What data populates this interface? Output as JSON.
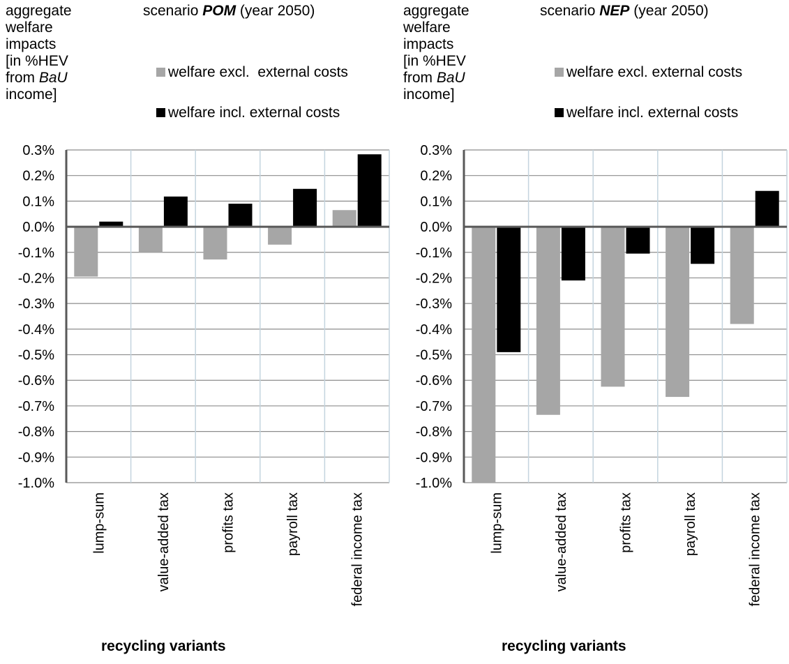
{
  "chart_data": [
    {
      "type": "bar",
      "title_prefix": "scenario",
      "title_scenario": "POM",
      "title_suffix": "(year 2050)",
      "ylabel_lines": [
        "aggregate",
        "welfare",
        "impacts",
        "[in %HEV",
        "from ",
        "income]"
      ],
      "ylabel_bau": "BaU",
      "xlabel": "recycling variants",
      "categories": [
        "lump-sum",
        "value-added tax",
        "profits tax",
        "payroll tax",
        "federal income tax"
      ],
      "ylim": [
        -1.0,
        0.3
      ],
      "yticks": [
        "0.3%",
        "0.2%",
        "0.1%",
        "0.0%",
        "-0.1%",
        "-0.2%",
        "-0.3%",
        "-0.4%",
        "-0.5%",
        "-0.6%",
        "-0.7%",
        "-0.8%",
        "-0.9%",
        "-1.0%"
      ],
      "grid": true,
      "legend_position": "top",
      "series": [
        {
          "name": "welfare excl.  external costs",
          "color": "#a6a6a6",
          "values": [
            -0.195,
            -0.1,
            -0.128,
            -0.07,
            0.065
          ]
        },
        {
          "name": "welfare incl. external costs",
          "color": "#000000",
          "values": [
            0.02,
            0.118,
            0.09,
            0.148,
            0.283
          ]
        }
      ]
    },
    {
      "type": "bar",
      "title_prefix": "scenario",
      "title_scenario": "NEP",
      "title_suffix": "(year 2050)",
      "ylabel_lines": [
        "aggregate",
        "welfare",
        "impacts",
        "[in %HEV",
        "from ",
        "income]"
      ],
      "ylabel_bau": "BaU",
      "xlabel": "recycling variants",
      "categories": [
        "lump-sum",
        "value-added tax",
        "profits tax",
        "payroll tax",
        "federal income tax"
      ],
      "ylim": [
        -1.0,
        0.3
      ],
      "yticks": [
        "0.3%",
        "0.2%",
        "0.1%",
        "0.0%",
        "-0.1%",
        "-0.2%",
        "-0.3%",
        "-0.4%",
        "-0.5%",
        "-0.6%",
        "-0.7%",
        "-0.8%",
        "-0.9%",
        "-1.0%"
      ],
      "grid": true,
      "legend_position": "top",
      "series": [
        {
          "name": "welfare excl. external costs",
          "color": "#a6a6a6",
          "values": [
            -1.0,
            -0.735,
            -0.625,
            -0.665,
            -0.38
          ]
        },
        {
          "name": "welfare incl. external costs",
          "color": "#000000",
          "values": [
            -0.49,
            -0.21,
            -0.105,
            -0.145,
            0.14
          ]
        }
      ]
    }
  ]
}
